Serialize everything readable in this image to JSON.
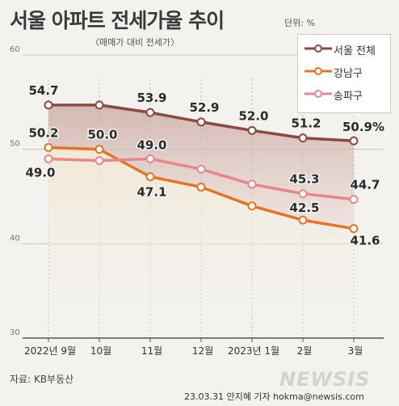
{
  "header": {
    "title": "서울 아파트 전세가율 추이",
    "unit": "단위: %",
    "subtitle": "〈매매가 대비 전세가〉"
  },
  "footer": {
    "source": "자료: KB부동산",
    "credit": "23.03.31 안지혜 기자 hokma@newsis.com",
    "logo": "NEWSIS"
  },
  "chart_data": {
    "type": "line",
    "title": "서울 아파트 전세가율 추이",
    "subtitle": "〈매매가 대비 전세가〉",
    "xlabel": "",
    "ylabel": "단위: %",
    "ylim": [
      30,
      60
    ],
    "yticks": [
      "30",
      "40",
      "50",
      "60"
    ],
    "grid": true,
    "legend_position": "top-right",
    "categories": [
      "2022년 9월",
      "10월",
      "11월",
      "12월",
      "2023년 1월",
      "2월",
      "3월"
    ],
    "series": [
      {
        "name": "서울 전체",
        "color": "#8a4a42",
        "values": [
          54.7,
          54.7,
          53.9,
          52.9,
          52.0,
          51.2,
          50.9
        ],
        "labels": [
          "54.7",
          "",
          "53.9",
          "52.9",
          "52.0",
          "51.2",
          "50.9%"
        ]
      },
      {
        "name": "강남구",
        "color": "#e0762c",
        "values": [
          50.2,
          50.0,
          47.1,
          46.0,
          44.0,
          42.5,
          41.6
        ],
        "labels": [
          "50.2",
          "50.0",
          "47.1",
          "",
          "",
          "42.5",
          "41.6"
        ]
      },
      {
        "name": "송파구",
        "color": "#e4888e",
        "values": [
          49.0,
          48.8,
          49.0,
          47.9,
          46.3,
          45.3,
          44.7
        ],
        "labels": [
          "49.0",
          "",
          "49.0",
          "",
          "",
          "45.3",
          "44.7"
        ]
      }
    ]
  }
}
